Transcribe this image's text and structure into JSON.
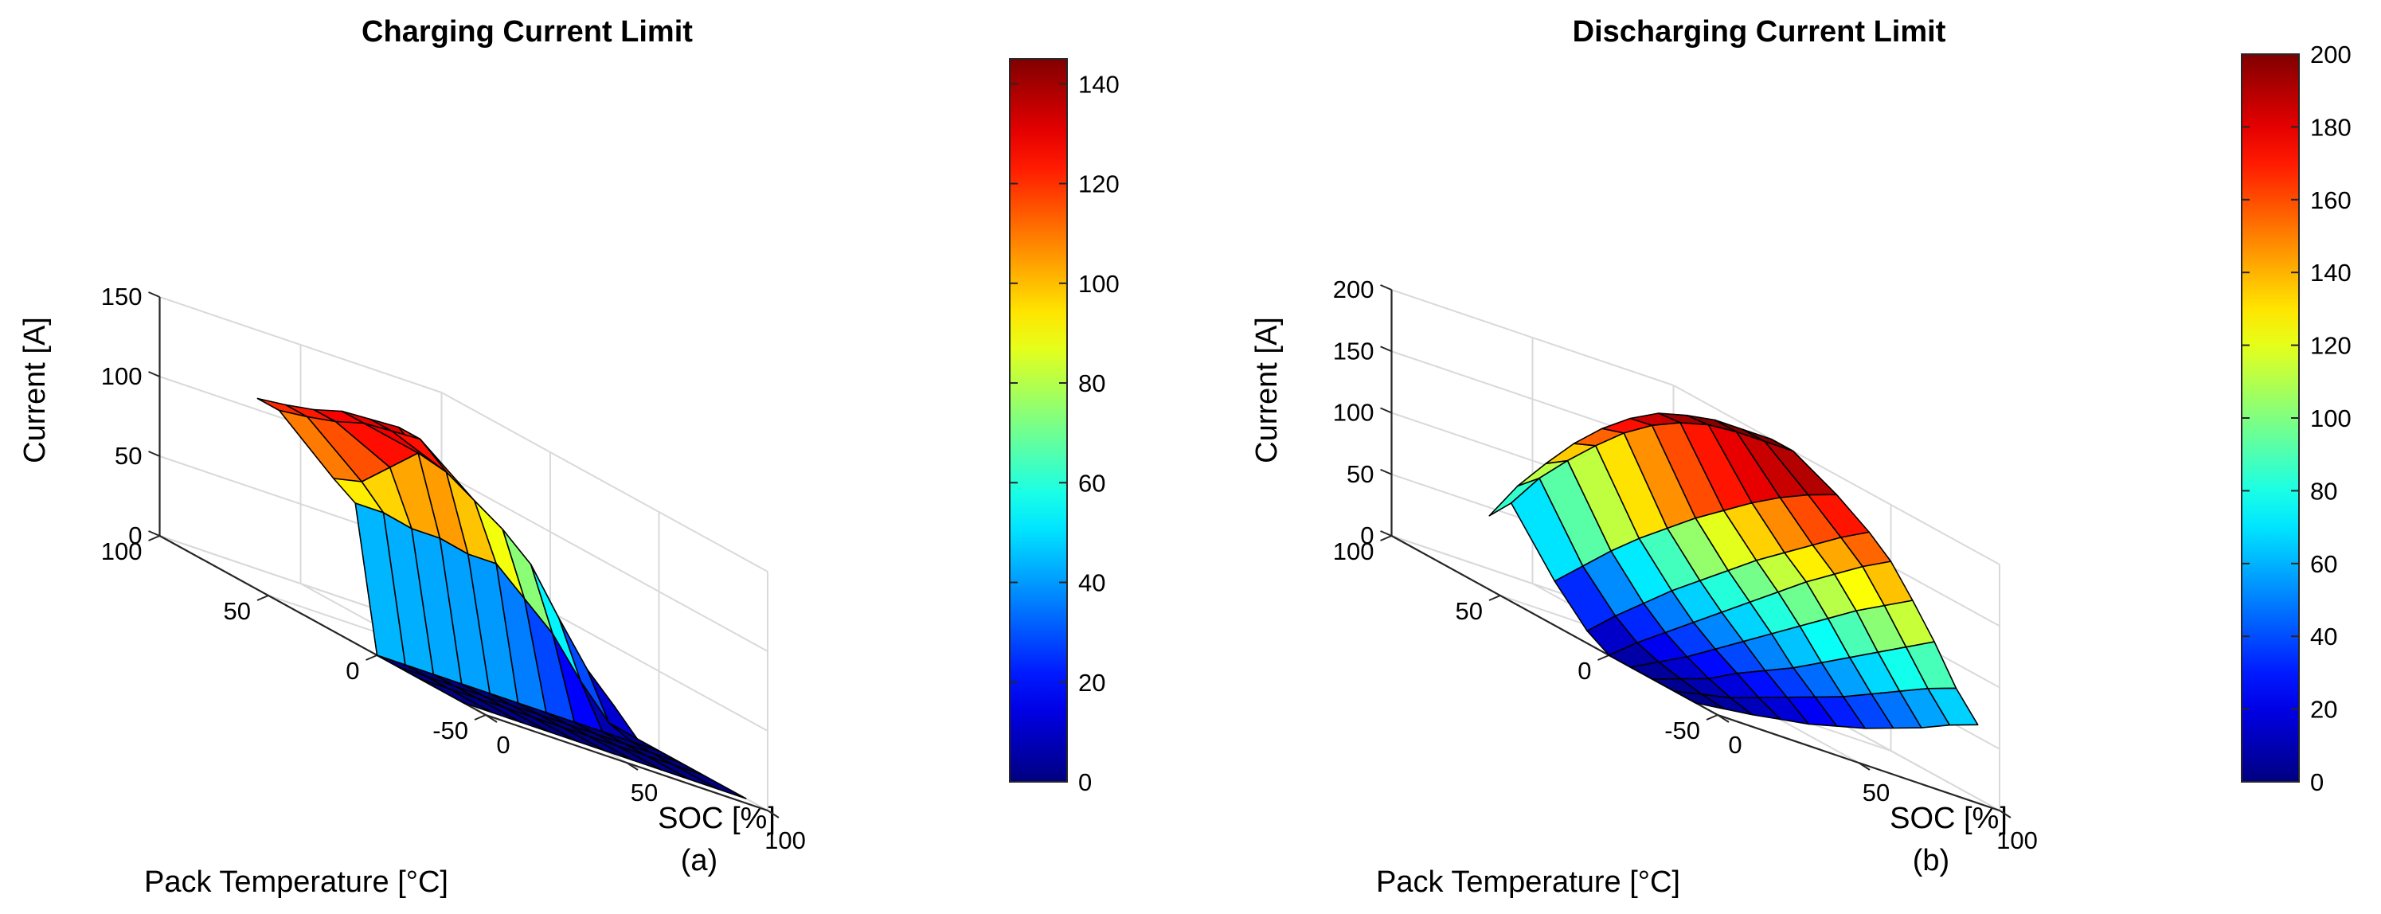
{
  "chart_data": [
    {
      "type": "surface",
      "title": "Charging Current Limit",
      "caption": "(a)",
      "xlabel": "SOC [%]",
      "ylabel": "Pack Temperature [°C]",
      "zlabel": "Current [A]",
      "soc": [
        0,
        10,
        20,
        30,
        40,
        50,
        60,
        70,
        80,
        90,
        100
      ],
      "temperature": [
        -40,
        -20,
        -10,
        0,
        10,
        20,
        45,
        55
      ],
      "current": [
        [
          0,
          0,
          0,
          0,
          0,
          0,
          0,
          0,
          0,
          0,
          0
        ],
        [
          0,
          0,
          0,
          0,
          0,
          0,
          0,
          0,
          0,
          0,
          0
        ],
        [
          0,
          0,
          0,
          0,
          0,
          0,
          0,
          0,
          0,
          0,
          0
        ],
        [
          0,
          0,
          0,
          0,
          0,
          0,
          0,
          0,
          0,
          0,
          0
        ],
        [
          88,
          88,
          84,
          84,
          80,
          80,
          64,
          48,
          24,
          4,
          0
        ],
        [
          96,
          100,
          115,
          130,
          124,
          112,
          100,
          84,
          56,
          30,
          12
        ],
        [
          120,
          122,
          125,
          130,
          131,
          132,
          116,
          102,
          76,
          52,
          36
        ],
        [
          120,
          122,
          125,
          130,
          131,
          132,
          116,
          102,
          76,
          52,
          36
        ]
      ],
      "x_ticks": [
        "0",
        "50",
        "100"
      ],
      "y_ticks": [
        "-50",
        "0",
        "50",
        "100"
      ],
      "z_ticks": [
        "0",
        "50",
        "100",
        "150"
      ],
      "xlim": [
        0,
        100
      ],
      "ylim": [
        -50,
        100
      ],
      "zlim": [
        0,
        150
      ],
      "colorbar": {
        "min": 0,
        "max": 145,
        "ticks": [
          "0",
          "20",
          "40",
          "60",
          "80",
          "100",
          "120",
          "140"
        ]
      },
      "colormap": "jet"
    },
    {
      "type": "surface",
      "title": "Discharging Current Limit",
      "caption": "(b)",
      "xlabel": "SOC [%]",
      "ylabel": "Pack Temperature [°C]",
      "zlabel": "Current [A]",
      "soc": [
        0,
        10,
        20,
        30,
        40,
        50,
        60,
        70,
        80,
        90,
        100
      ],
      "temperature": [
        -40,
        -30,
        -20,
        -10,
        0,
        10,
        25,
        45,
        55
      ],
      "current": [
        [
          0,
          3,
          6,
          10,
          14,
          20,
          26,
          34,
          42,
          52,
          60
        ],
        [
          0,
          5,
          10,
          18,
          26,
          34,
          42,
          52,
          62,
          72,
          80
        ],
        [
          0,
          8,
          16,
          28,
          38,
          48,
          60,
          72,
          84,
          96,
          108
        ],
        [
          0,
          12,
          24,
          38,
          52,
          66,
          80,
          94,
          108,
          120,
          132
        ],
        [
          0,
          18,
          34,
          50,
          66,
          82,
          98,
          114,
          128,
          142,
          154
        ],
        [
          10,
          30,
          48,
          66,
          82,
          98,
          114,
          128,
          142,
          156,
          168
        ],
        [
          36,
          56,
          76,
          94,
          110,
          126,
          140,
          154,
          166,
          176,
          184
        ],
        [
          80,
          108,
          130,
          150,
          168,
          182,
          192,
          198,
          200,
          200,
          200
        ],
        [
          60,
          92,
          118,
          142,
          162,
          178,
          190,
          196,
          200,
          200,
          200
        ]
      ],
      "x_ticks": [
        "0",
        "50",
        "100"
      ],
      "y_ticks": [
        "-50",
        "0",
        "50",
        "100"
      ],
      "z_ticks": [
        "0",
        "50",
        "100",
        "150",
        "200"
      ],
      "xlim": [
        0,
        100
      ],
      "ylim": [
        -50,
        100
      ],
      "zlim": [
        0,
        200
      ],
      "colorbar": {
        "min": 0,
        "max": 200,
        "ticks": [
          "0",
          "20",
          "40",
          "60",
          "80",
          "100",
          "120",
          "140",
          "160",
          "180",
          "200"
        ]
      },
      "colormap": "jet"
    }
  ]
}
